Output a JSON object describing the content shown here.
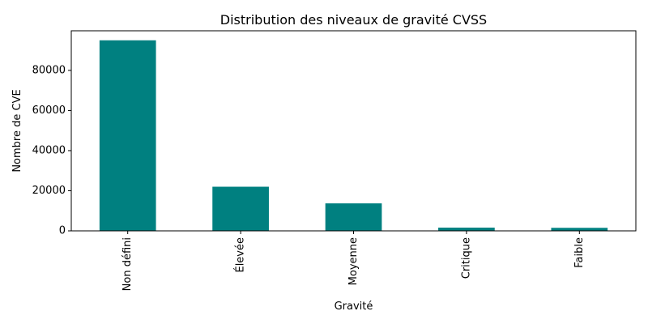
{
  "chart_data": {
    "type": "bar",
    "title": "Distribution des niveaux de gravité CVSS",
    "xlabel": "Gravité",
    "ylabel": "Nombre de CVE",
    "categories": [
      "Non défini",
      "Élevée",
      "Moyenne",
      "Critique",
      "Faible"
    ],
    "values": [
      95000,
      22000,
      13700,
      1600,
      1500
    ],
    "ylim": [
      0,
      99750
    ],
    "yticks": [
      0,
      20000,
      40000,
      60000,
      80000
    ],
    "bar_color": "#008080",
    "grid": false,
    "legend": "none"
  }
}
